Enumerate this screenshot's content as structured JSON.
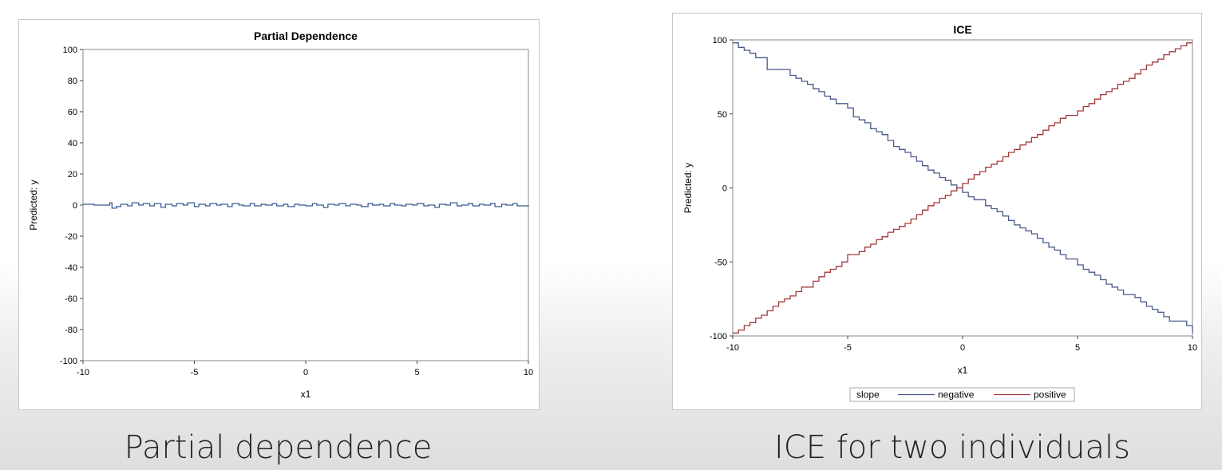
{
  "captions": {
    "left": "Partial dependence",
    "right": "ICE for two individuals"
  },
  "chart_data": [
    {
      "type": "line",
      "title": "Partial Dependence",
      "xlabel": "x1",
      "ylabel": "Predicted: y",
      "xlim": [
        -10,
        10
      ],
      "ylim": [
        -100,
        100
      ],
      "xticks": [
        "-10",
        "-5",
        "0",
        "5",
        "10"
      ],
      "yticks": [
        "100",
        "80",
        "60",
        "40",
        "20",
        "0",
        "-20",
        "-40",
        "-60",
        "-80",
        "-100"
      ],
      "grid": false,
      "series": [
        {
          "color": "#3b5b92",
          "x": [
            -10,
            -9.5,
            -9,
            -8.8,
            -8.7,
            -8.5,
            -8.3,
            -8,
            -7.8,
            -7.5,
            -7.3,
            -7,
            -6.8,
            -6.5,
            -6.3,
            -6,
            -5.8,
            -5.5,
            -5.3,
            -5,
            -4.8,
            -4.5,
            -4.3,
            -4,
            -3.8,
            -3.5,
            -3.3,
            -3,
            -2.8,
            -2.5,
            -2.3,
            -2,
            -1.8,
            -1.5,
            -1.3,
            -1,
            -0.8,
            -0.5,
            -0.3,
            0,
            0.3,
            0.5,
            0.8,
            1,
            1.3,
            1.5,
            1.8,
            2,
            2.3,
            2.5,
            2.8,
            3,
            3.3,
            3.5,
            3.8,
            4,
            4.3,
            4.5,
            4.8,
            5,
            5.3,
            5.5,
            5.8,
            6,
            6.3,
            6.5,
            6.8,
            7,
            7.3,
            7.5,
            7.8,
            8,
            8.3,
            8.5,
            8.8,
            9,
            9.3,
            9.5,
            10
          ],
          "y": [
            0.5,
            0,
            0,
            1.5,
            -2,
            -1,
            0.5,
            -0.5,
            1.5,
            0,
            1,
            -0.5,
            1,
            -1.5,
            0.5,
            -0.5,
            1,
            0,
            1.5,
            -1,
            0.5,
            -0.5,
            1,
            0,
            0.5,
            -1,
            1,
            0,
            -0.5,
            1,
            -0.5,
            0.5,
            0,
            1,
            -0.5,
            0.5,
            -1,
            0.5,
            0,
            -0.5,
            1,
            0,
            -1.5,
            0.5,
            0,
            1,
            -0.5,
            0.5,
            0,
            -1,
            1,
            0,
            0.5,
            -0.5,
            1,
            0,
            -0.5,
            0.5,
            0,
            1,
            -0.5,
            0,
            -1.5,
            0.5,
            0,
            1.5,
            -0.5,
            0,
            1,
            -0.5,
            0.5,
            0,
            1,
            -1,
            0.5,
            0,
            1,
            -0.5,
            0
          ]
        }
      ]
    },
    {
      "type": "line",
      "title": "ICE",
      "xlabel": "x1",
      "ylabel": "Predicted: y",
      "xlim": [
        -10,
        10
      ],
      "ylim": [
        -100,
        100
      ],
      "xticks": [
        "-10",
        "-5",
        "0",
        "5",
        "10"
      ],
      "yticks": [
        "100",
        "50",
        "0",
        "-50",
        "-100"
      ],
      "grid": false,
      "legend": {
        "position": "bottom",
        "title": "slope",
        "entries": [
          "negative",
          "positive"
        ]
      },
      "series": [
        {
          "name": "negative",
          "color": "#4a5a8a",
          "x": [
            -10,
            -9.75,
            -9.5,
            -9.25,
            -9,
            -8.5,
            -7.5,
            -7.25,
            -7,
            -6.75,
            -6.5,
            -6.25,
            -6,
            -5.75,
            -5.5,
            -5,
            -4.75,
            -4.5,
            -4.25,
            -4,
            -3.75,
            -3.5,
            -3.25,
            -3,
            -2.75,
            -2.5,
            -2.25,
            -2,
            -1.75,
            -1.5,
            -1.25,
            -1,
            -0.75,
            -0.5,
            -0.25,
            0,
            0.25,
            0.5,
            1,
            1.25,
            1.5,
            1.75,
            2,
            2.25,
            2.5,
            2.75,
            3,
            3.25,
            3.5,
            3.75,
            4,
            4.25,
            4.5,
            5,
            5.25,
            5.5,
            5.75,
            6,
            6.25,
            6.5,
            6.75,
            7,
            7.5,
            7.75,
            8,
            8.25,
            8.5,
            8.75,
            9,
            9.75,
            10
          ],
          "y": [
            98,
            95,
            93,
            91,
            88,
            80,
            76,
            74,
            72,
            70,
            67,
            65,
            62,
            60,
            57,
            54,
            48,
            46,
            44,
            40,
            38,
            36,
            32,
            28,
            26,
            24,
            21,
            18,
            15,
            12,
            10,
            7,
            5,
            2,
            0,
            -3,
            -6,
            -8,
            -12,
            -14,
            -16,
            -19,
            -22,
            -25,
            -27,
            -29,
            -31,
            -34,
            -37,
            -40,
            -42,
            -45,
            -48,
            -52,
            -55,
            -57,
            -59,
            -62,
            -65,
            -67,
            -69,
            -72,
            -74,
            -77,
            -80,
            -82,
            -84,
            -87,
            -90,
            -93,
            -98
          ]
        },
        {
          "name": "positive",
          "color": "#a33a3a",
          "x": [
            -10,
            -9.75,
            -9.5,
            -9.25,
            -9,
            -8.75,
            -8.5,
            -8.25,
            -8,
            -7.75,
            -7.5,
            -7.25,
            -7,
            -6.5,
            -6.25,
            -6,
            -5.75,
            -5.5,
            -5.25,
            -5,
            -4.5,
            -4.25,
            -4,
            -3.75,
            -3.5,
            -3.25,
            -3,
            -2.75,
            -2.5,
            -2.25,
            -2,
            -1.75,
            -1.5,
            -1.25,
            -1,
            -0.75,
            -0.5,
            -0.25,
            0,
            0.25,
            0.5,
            0.75,
            1,
            1.25,
            1.5,
            1.75,
            2,
            2.25,
            2.5,
            2.75,
            3,
            3.25,
            3.5,
            3.75,
            4,
            4.25,
            4.5,
            5,
            5.25,
            5.5,
            5.75,
            6,
            6.25,
            6.5,
            6.75,
            7,
            7.25,
            7.5,
            7.75,
            8,
            8.25,
            8.5,
            8.75,
            9,
            9.25,
            9.5,
            9.75,
            10
          ],
          "y": [
            -98,
            -96,
            -93,
            -91,
            -88,
            -86,
            -83,
            -80,
            -77,
            -75,
            -73,
            -70,
            -67,
            -63,
            -60,
            -57,
            -55,
            -53,
            -50,
            -45,
            -43,
            -40,
            -38,
            -35,
            -33,
            -30,
            -28,
            -26,
            -24,
            -21,
            -18,
            -15,
            -12,
            -10,
            -7,
            -5,
            -2,
            0,
            3,
            6,
            9,
            11,
            14,
            16,
            18,
            21,
            24,
            26,
            29,
            31,
            34,
            36,
            39,
            42,
            44,
            47,
            49,
            52,
            55,
            57,
            60,
            63,
            65,
            67,
            70,
            72,
            74,
            77,
            80,
            83,
            85,
            87,
            90,
            92,
            94,
            96,
            98,
            98
          ]
        }
      ]
    }
  ]
}
